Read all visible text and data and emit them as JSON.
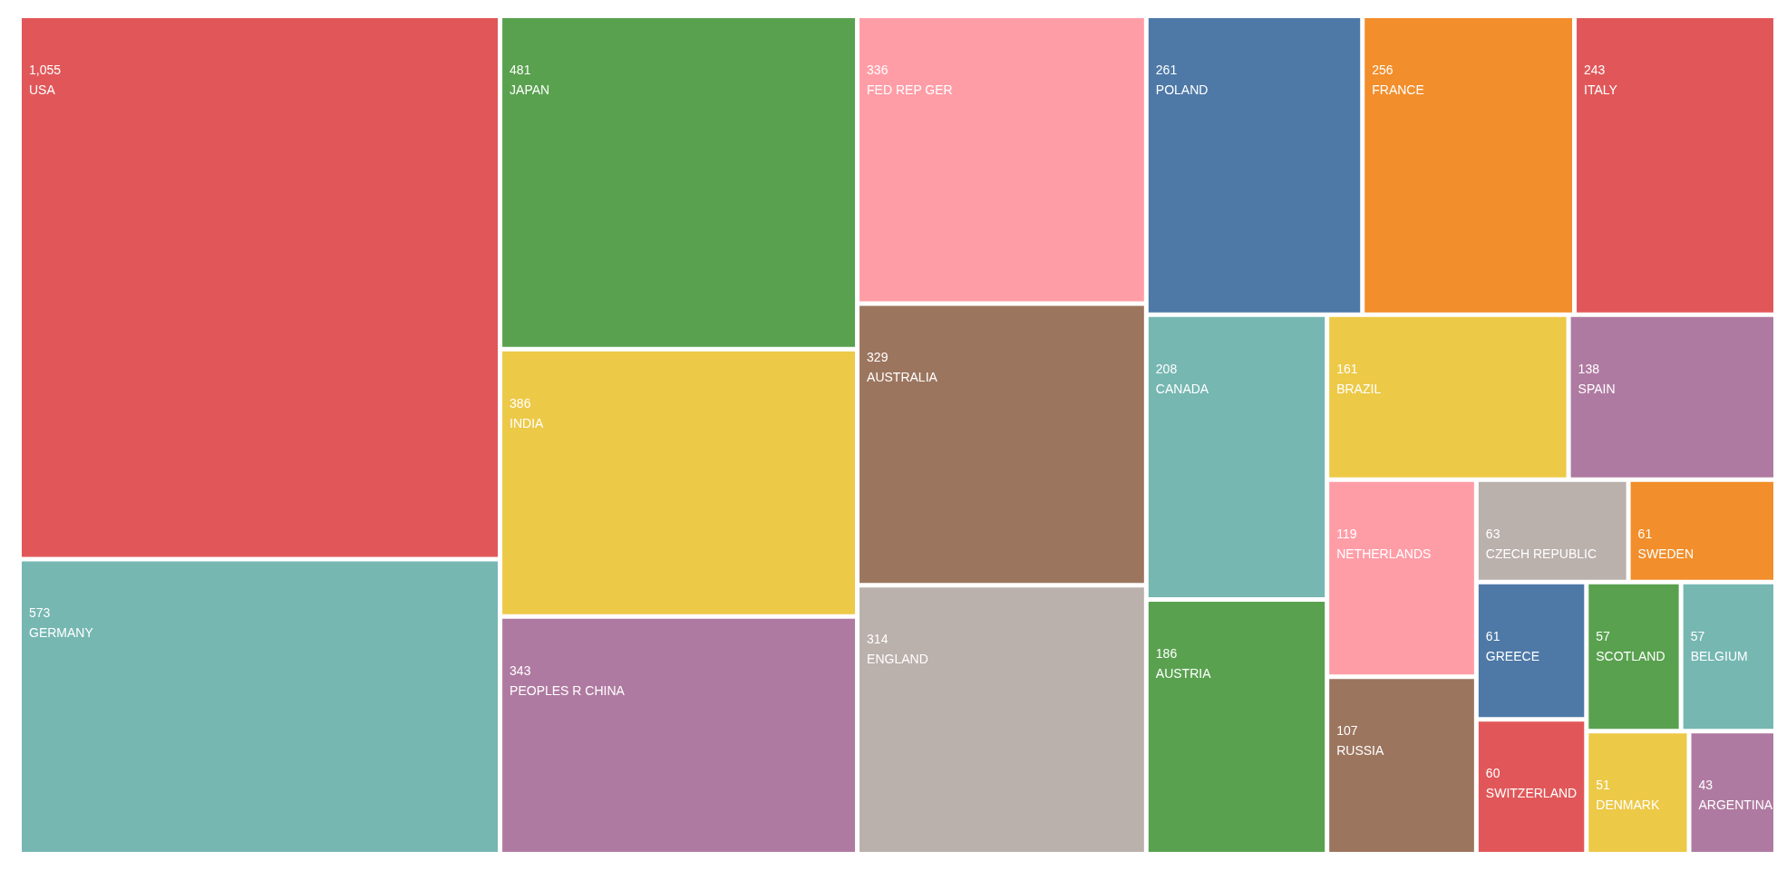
{
  "chart_data": {
    "type": "other",
    "categories": [
      "USA",
      "GERMANY",
      "JAPAN",
      "INDIA",
      "PEOPLES R CHINA",
      "FED REP GER",
      "AUSTRALIA",
      "ENGLAND",
      "POLAND",
      "FRANCE",
      "ITALY",
      "CANADA",
      "AUSTRIA",
      "BRAZIL",
      "SPAIN",
      "NETHERLANDS",
      "RUSSIA",
      "CZECH REPUBLIC",
      "GREECE",
      "SWEDEN",
      "SWITZERLAND",
      "BELGIUM",
      "SCOTLAND",
      "DENMARK",
      "ARGENTINA"
    ],
    "values": [
      1055,
      573,
      481,
      386,
      343,
      336,
      329,
      314,
      261,
      256,
      243,
      208,
      186,
      161,
      138,
      119,
      107,
      63,
      61,
      61,
      60,
      57,
      57,
      51,
      43
    ],
    "colors": [
      "#e15759",
      "#76b7b2",
      "#59a14f",
      "#edc948",
      "#af7aa1",
      "#ff9da7",
      "#9c755f",
      "#bab0ac",
      "#4e79a7",
      "#f28e2b",
      "#e15759",
      "#76b7b2",
      "#59a14f",
      "#edc948",
      "#af7aa1",
      "#ff9da7",
      "#9c755f",
      "#bab0ac",
      "#4e79a7",
      "#f28e2b",
      "#e15759",
      "#76b7b2",
      "#59a14f",
      "#edc948",
      "#af7aa1"
    ],
    "value_labels": [
      "1,055",
      "573",
      "481",
      "386",
      "343",
      "336",
      "329",
      "314",
      "261",
      "256",
      "243",
      "208",
      "186",
      "161",
      "138",
      "119",
      "107",
      "63",
      "61",
      "61",
      "60",
      "57",
      "57",
      "51",
      "43"
    ]
  }
}
